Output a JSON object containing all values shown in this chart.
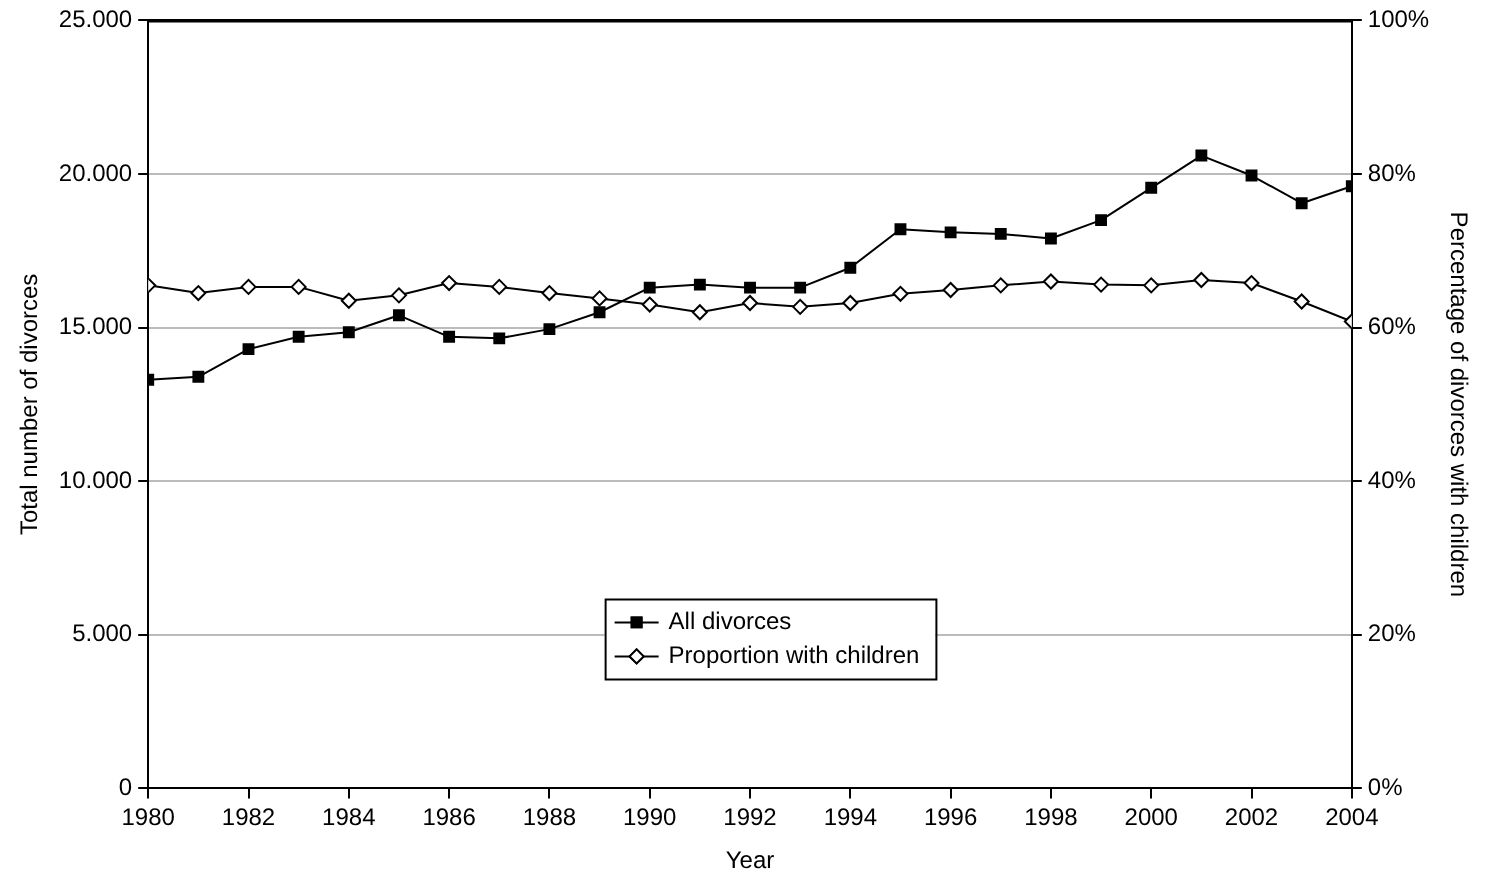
{
  "chart_data": {
    "type": "line",
    "xlabel": "Year",
    "ylabel": "Total number of divorces",
    "y2label": "Percentage of divorces with children",
    "x": [
      1980,
      1981,
      1982,
      1983,
      1984,
      1985,
      1986,
      1987,
      1988,
      1989,
      1990,
      1991,
      1992,
      1993,
      1994,
      1995,
      1996,
      1997,
      1998,
      1999,
      2000,
      2001,
      2002,
      2003,
      2004
    ],
    "series": [
      {
        "name": "All divorces",
        "color": "#000000",
        "marker": "square",
        "values": [
          13300,
          13400,
          14300,
          14700,
          14850,
          15400,
          14700,
          14650,
          14950,
          15500,
          16300,
          16400,
          16300,
          16300,
          16950,
          18200,
          18100,
          18050,
          17900,
          18500,
          19550,
          20600,
          19950,
          19050,
          19600
        ]
      },
      {
        "name": "Proportion with children",
        "color": "#000000",
        "marker": "diamond",
        "axis": "y2",
        "values": [
          65.5,
          64.5,
          65.3,
          65.3,
          63.5,
          64.2,
          65.8,
          65.3,
          64.5,
          63.8,
          63,
          62,
          63.2,
          62.7,
          63.2,
          64.4,
          64.9,
          65.5,
          66,
          65.6,
          65.5,
          66.2,
          65.8,
          63.4,
          60.8
        ]
      }
    ],
    "xlim": [
      1980,
      2004
    ],
    "xticks": [
      1980,
      1982,
      1984,
      1986,
      1988,
      1990,
      1992,
      1994,
      1996,
      1998,
      2000,
      2002,
      2004
    ],
    "ylim": [
      0,
      25000
    ],
    "yticks": [
      0,
      {
        "value": 5000,
        "label": "5.000"
      },
      {
        "value": 10000,
        "label": "10.000"
      },
      {
        "value": 15000,
        "label": "15.000"
      },
      {
        "value": 20000,
        "label": "20.000"
      },
      {
        "value": 25000,
        "label": "25.000"
      }
    ],
    "y2lim": [
      0,
      100
    ],
    "y2ticks": [
      {
        "value": 0,
        "label": "0%"
      },
      {
        "value": 20,
        "label": "20%"
      },
      {
        "value": 40,
        "label": "40%"
      },
      {
        "value": 60,
        "label": "60%"
      },
      {
        "value": 80,
        "label": "80%"
      },
      {
        "value": 100,
        "label": "100%"
      }
    ],
    "grid": "y",
    "legend": "bottom",
    "line_style": "solid"
  }
}
